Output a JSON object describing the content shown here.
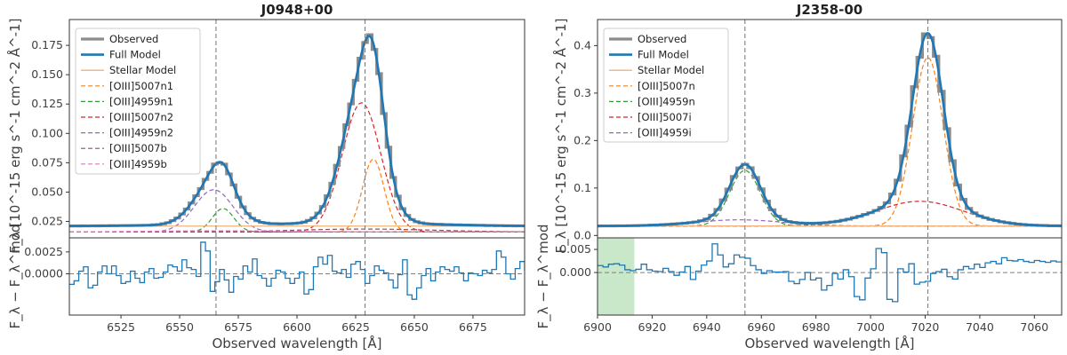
{
  "chart_data": [
    {
      "type": "line",
      "title": "J0948+00",
      "xlabel": "Observed wavelength [Å]",
      "ylabel_top": "F_λ [10^-15 erg s^-1 cm^-2 Å^-1]",
      "ylabel_bottom": "F_λ − F_λ^mod",
      "xlim": [
        6503,
        6697
      ],
      "ylim_top": [
        0.011,
        0.197
      ],
      "ylim_bottom": [
        -0.0047,
        0.0041
      ],
      "xticks": [
        6525,
        6550,
        6575,
        6600,
        6625,
        6650,
        6675
      ],
      "xtick_labels": [
        "6525",
        "6550",
        "6575",
        "6600",
        "6625",
        "6650",
        "6675"
      ],
      "yticks_top": [
        0.025,
        0.05,
        0.075,
        0.1,
        0.125,
        0.15,
        0.175
      ],
      "ytick_labels_top": [
        "0.025",
        "0.050",
        "0.075",
        "0.100",
        "0.125",
        "0.150",
        "0.175"
      ],
      "yticks_bottom": [
        0.0,
        0.0025
      ],
      "ytick_labels_bottom": [
        "0.0000",
        "0.0025"
      ],
      "vlines": [
        6565.5,
        6629
      ],
      "legend_position": "top-left",
      "continuum": 0.021,
      "stellar_level": 0.021,
      "dashed_base": 0.016,
      "components": [
        {
          "name": "[OIII]5007n1",
          "color": "#ff7f0e",
          "center": 6632.5,
          "amp": 0.062,
          "sigma": 4.6,
          "base": 0.016
        },
        {
          "name": "[OIII]4959n1",
          "color": "#2ca02c",
          "center": 6568.5,
          "amp": 0.02,
          "sigma": 4.6,
          "base": 0.016
        },
        {
          "name": "[OIII]5007n2",
          "color": "#d62728",
          "center": 6627.5,
          "amp": 0.11,
          "sigma": 8.2,
          "base": 0.016
        },
        {
          "name": "[OIII]4959n2",
          "color": "#9467bd",
          "center": 6564.5,
          "amp": 0.036,
          "sigma": 8.2,
          "base": 0.016
        },
        {
          "name": "[OIII]5007b",
          "color": "#8c564b",
          "center": 6629,
          "amp": 0.0025,
          "sigma": 30,
          "base": 0.016
        },
        {
          "name": "[OIII]4959b",
          "color": "#e377c2",
          "center": 6565.5,
          "amp": 0.001,
          "sigma": 30,
          "base": 0.016
        }
      ],
      "observed_step": 2.0,
      "residuals": {
        "x_start": 6503,
        "step": 2.0,
        "values": [
          -0.0012,
          -0.0008,
          0.0003,
          0.0008,
          -0.0016,
          -0.0013,
          0.0002,
          0.0009,
          0.0,
          0.0009,
          -0.0002,
          -0.0011,
          -0.0009,
          0.0003,
          -0.0005,
          -0.001,
          0.0002,
          0.0006,
          -0.0005,
          -0.0004,
          0.0002,
          0.001,
          0.0008,
          0.0003,
          0.0016,
          0.0007,
          0.0005,
          -0.0003,
          0.0036,
          0.0026,
          -0.002,
          -0.0009,
          0.0005,
          -0.0007,
          -0.0021,
          -0.0003,
          -0.0006,
          0.0009,
          0.0002,
          0.0017,
          -0.0002,
          -0.0005,
          -0.0014,
          -0.0005,
          0.0004,
          0.0002,
          -0.0005,
          -0.0011,
          -0.0005,
          0.0002,
          -0.0023,
          -0.0018,
          0.0008,
          0.0019,
          0.0011,
          0.0021,
          0.0003,
          0.0001,
          0.0005,
          -0.0004,
          0.0011,
          0.0014,
          0.0005,
          -0.0011,
          -0.0002,
          0.0009,
          0.0004,
          0.0001,
          -0.0007,
          -0.0016,
          -0.0001,
          0.0016,
          -0.0024,
          -0.0029,
          -0.0016,
          -0.0002,
          0.0006,
          -0.0008,
          0.0002,
          0.0008,
          0.0005,
          0.0003,
          0.0008,
          0.0001,
          -0.0008,
          0.0001,
          0.0,
          -0.0002,
          0.0004,
          0.0001,
          0.0005,
          0.0026,
          0.0019,
          0.0,
          -0.0006,
          0.0006,
          0.0014,
          0.0004,
          0.0002
        ]
      },
      "legend": [
        "Observed",
        "Full Model",
        "Stellar Model",
        "[OIII]5007n1",
        "[OIII]4959n1",
        "[OIII]5007n2",
        "[OIII]4959n2",
        "[OIII]5007b",
        "[OIII]4959b"
      ]
    },
    {
      "type": "line",
      "title": "J2358-00",
      "xlabel": "Observed wavelength [Å]",
      "ylabel_top": "F_λ [10^-15 erg s^-1 cm^-2 Å^-1]",
      "ylabel_bottom": "F_λ − F_λ^mod",
      "xlim": [
        6900,
        7070
      ],
      "ylim_top": [
        -0.005,
        0.455
      ],
      "ylim_bottom": [
        -0.0092,
        0.0075
      ],
      "xticks": [
        6900,
        6920,
        6940,
        6960,
        6980,
        7000,
        7020,
        7040,
        7060
      ],
      "xtick_labels": [
        "6900",
        "6920",
        "6940",
        "6960",
        "6980",
        "7000",
        "7020",
        "7040",
        "7060"
      ],
      "yticks_top": [
        0.0,
        0.1,
        0.2,
        0.3,
        0.4
      ],
      "ytick_labels_top": [
        "0.0",
        "0.1",
        "0.2",
        "0.3",
        "0.4"
      ],
      "yticks_bottom": [
        0.0,
        0.005
      ],
      "ytick_labels_bottom": [
        "0.000",
        "0.005"
      ],
      "vlines": [
        6954,
        7021
      ],
      "shaded_region": [
        6900,
        6913.5
      ],
      "legend_position": "top-left",
      "continuum": 0.02,
      "stellar_level": 0.02,
      "dashed_base": 0.0,
      "components": [
        {
          "name": "[OIII]5007n",
          "color": "#ff7f0e",
          "center": 7021,
          "amp": 0.355,
          "sigma": 5.6,
          "base": 0.02
        },
        {
          "name": "[OIII]4959n",
          "color": "#2ca02c",
          "center": 6954,
          "amp": 0.117,
          "sigma": 5.6,
          "base": 0.02
        },
        {
          "name": "[OIII]5007i",
          "color": "#d62728",
          "center": 7018,
          "amp": 0.052,
          "sigma": 16,
          "base": 0.02
        },
        {
          "name": "[OIII]4959i",
          "color": "#9467bd",
          "center": 6952,
          "amp": 0.013,
          "sigma": 16,
          "base": 0.02
        }
      ],
      "observed_step": 2.0,
      "residuals": {
        "x_start": 6900,
        "step": 2.0,
        "values": [
          0.0015,
          0.0012,
          0.0018,
          0.0019,
          0.0016,
          0.0006,
          0.0004,
          0.0007,
          0.0018,
          0.0006,
          0.0003,
          0.0002,
          0.0009,
          0.0002,
          -0.0006,
          0.0001,
          0.0013,
          -0.0015,
          0.0003,
          0.0016,
          0.0025,
          0.0062,
          0.0038,
          0.0012,
          0.0019,
          0.0038,
          0.0033,
          0.0031,
          0.0015,
          0.0006,
          -0.0002,
          0.0004,
          0.0001,
          0.0001,
          0.0002,
          -0.0019,
          -0.0024,
          -0.0015,
          0.0,
          -0.0016,
          -0.0012,
          -0.0038,
          -0.0028,
          -0.0002,
          -0.0014,
          0.0006,
          -0.0009,
          -0.0052,
          -0.0059,
          -0.0012,
          0.0008,
          0.0052,
          0.0043,
          -0.0058,
          -0.0063,
          0.0008,
          0.0001,
          0.0019,
          -0.0025,
          -0.0021,
          -0.0019,
          -0.0002,
          0.0002,
          0.0007,
          -0.0009,
          -0.0014,
          0.0006,
          0.0013,
          0.0008,
          0.0018,
          0.0011,
          0.0021,
          0.0024,
          0.0019,
          0.0032,
          0.0026,
          0.0025,
          0.0028,
          0.0024,
          0.0022,
          0.0026,
          0.0024,
          0.0022,
          0.0025,
          0.0023,
          0.0024
        ]
      },
      "legend": [
        "Observed",
        "Full Model",
        "Stellar Model",
        "[OIII]5007n",
        "[OIII]4959n",
        "[OIII]5007i",
        "[OIII]4959i"
      ]
    }
  ],
  "series_colors": {
    "observed": "#8c8c8c",
    "full_model": "#1f77b4",
    "stellar": "#f0b27a",
    "residual": "#1f77b4",
    "vline": "#7f7f7f",
    "zero_line": "#7f7f7f",
    "shade": "#b7dfb7"
  }
}
